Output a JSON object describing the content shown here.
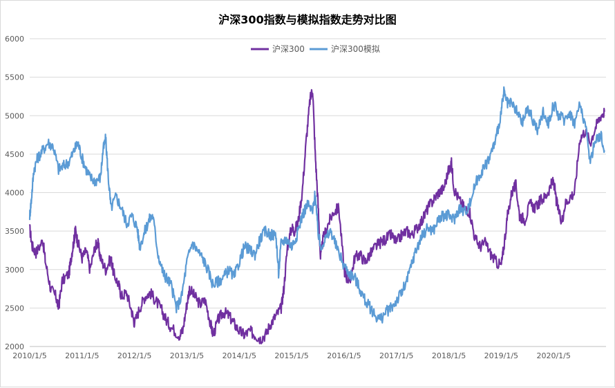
{
  "chart_data": {
    "type": "line",
    "title": "沪深300指数与模拟指数走势对比图",
    "xlabel": "",
    "ylabel": "",
    "ylim": [
      2000,
      6000
    ],
    "yticks": [
      2000,
      2500,
      3000,
      3500,
      4000,
      4500,
      5000,
      5500,
      6000
    ],
    "x_ticks": [
      "2010/1/5",
      "2011/1/5",
      "2012/1/5",
      "2013/1/5",
      "2014/1/5",
      "2015/1/5",
      "2016/1/5",
      "2017/1/5",
      "2018/1/5",
      "2019/1/5",
      "2020/1/5"
    ],
    "x_range": [
      2010.0,
      2021.0
    ],
    "legend_position": "top-center",
    "grid": true,
    "series": [
      {
        "name": "沪深300",
        "color": "#7030a0",
        "points": [
          [
            2010.0,
            3530
          ],
          [
            2010.05,
            3300
          ],
          [
            2010.12,
            3220
          ],
          [
            2010.25,
            3380
          ],
          [
            2010.3,
            3100
          ],
          [
            2010.4,
            2750
          ],
          [
            2010.5,
            2650
          ],
          [
            2010.55,
            2500
          ],
          [
            2010.62,
            2850
          ],
          [
            2010.75,
            2950
          ],
          [
            2010.8,
            3200
          ],
          [
            2010.85,
            3400
          ],
          [
            2010.87,
            3520
          ],
          [
            2010.92,
            3350
          ],
          [
            2011.0,
            3150
          ],
          [
            2011.08,
            3250
          ],
          [
            2011.15,
            3000
          ],
          [
            2011.25,
            3300
          ],
          [
            2011.3,
            3350
          ],
          [
            2011.35,
            3150
          ],
          [
            2011.45,
            3000
          ],
          [
            2011.55,
            3150
          ],
          [
            2011.6,
            2950
          ],
          [
            2011.7,
            2800
          ],
          [
            2011.75,
            2650
          ],
          [
            2011.85,
            2700
          ],
          [
            2011.95,
            2450
          ],
          [
            2012.0,
            2300
          ],
          [
            2012.1,
            2500
          ],
          [
            2012.2,
            2650
          ],
          [
            2012.3,
            2700
          ],
          [
            2012.4,
            2600
          ],
          [
            2012.5,
            2500
          ],
          [
            2012.6,
            2350
          ],
          [
            2012.7,
            2250
          ],
          [
            2012.85,
            2150
          ],
          [
            2012.92,
            2200
          ],
          [
            2013.0,
            2550
          ],
          [
            2013.05,
            2750
          ],
          [
            2013.15,
            2650
          ],
          [
            2013.25,
            2550
          ],
          [
            2013.35,
            2600
          ],
          [
            2013.45,
            2300
          ],
          [
            2013.5,
            2150
          ],
          [
            2013.6,
            2350
          ],
          [
            2013.7,
            2450
          ],
          [
            2013.8,
            2400
          ],
          [
            2013.9,
            2300
          ],
          [
            2014.0,
            2200
          ],
          [
            2014.1,
            2150
          ],
          [
            2014.2,
            2200
          ],
          [
            2014.3,
            2150
          ],
          [
            2014.4,
            2100
          ],
          [
            2014.5,
            2150
          ],
          [
            2014.6,
            2300
          ],
          [
            2014.7,
            2400
          ],
          [
            2014.8,
            2500
          ],
          [
            2014.85,
            2750
          ],
          [
            2014.92,
            3300
          ],
          [
            2015.0,
            3550
          ],
          [
            2015.05,
            3500
          ],
          [
            2015.12,
            3600
          ],
          [
            2015.2,
            4000
          ],
          [
            2015.28,
            4700
          ],
          [
            2015.35,
            5200
          ],
          [
            2015.4,
            5350
          ],
          [
            2015.45,
            4500
          ],
          [
            2015.5,
            3900
          ],
          [
            2015.55,
            3150
          ],
          [
            2015.6,
            3400
          ],
          [
            2015.7,
            3600
          ],
          [
            2015.8,
            3750
          ],
          [
            2015.9,
            3800
          ],
          [
            2016.0,
            3000
          ],
          [
            2016.05,
            2900
          ],
          [
            2016.12,
            2850
          ],
          [
            2016.2,
            3150
          ],
          [
            2016.3,
            3200
          ],
          [
            2016.4,
            3100
          ],
          [
            2016.5,
            3200
          ],
          [
            2016.6,
            3300
          ],
          [
            2016.7,
            3350
          ],
          [
            2016.8,
            3400
          ],
          [
            2016.9,
            3450
          ],
          [
            2017.0,
            3350
          ],
          [
            2017.1,
            3450
          ],
          [
            2017.2,
            3500
          ],
          [
            2017.3,
            3450
          ],
          [
            2017.4,
            3550
          ],
          [
            2017.5,
            3650
          ],
          [
            2017.6,
            3800
          ],
          [
            2017.7,
            3900
          ],
          [
            2017.8,
            4000
          ],
          [
            2017.9,
            4050
          ],
          [
            2018.0,
            4300
          ],
          [
            2018.05,
            4380
          ],
          [
            2018.1,
            4050
          ],
          [
            2018.2,
            3900
          ],
          [
            2018.3,
            3800
          ],
          [
            2018.4,
            3750
          ],
          [
            2018.5,
            3400
          ],
          [
            2018.6,
            3300
          ],
          [
            2018.7,
            3350
          ],
          [
            2018.8,
            3200
          ],
          [
            2018.9,
            3100
          ],
          [
            2019.0,
            3050
          ],
          [
            2019.05,
            3300
          ],
          [
            2019.12,
            3700
          ],
          [
            2019.2,
            4000
          ],
          [
            2019.28,
            4100
          ],
          [
            2019.35,
            3700
          ],
          [
            2019.45,
            3650
          ],
          [
            2019.55,
            3850
          ],
          [
            2019.65,
            3800
          ],
          [
            2019.75,
            3900
          ],
          [
            2019.85,
            3950
          ],
          [
            2019.95,
            4100
          ],
          [
            2020.0,
            4150
          ],
          [
            2020.05,
            3900
          ],
          [
            2020.15,
            3600
          ],
          [
            2020.22,
            3850
          ],
          [
            2020.32,
            3950
          ],
          [
            2020.4,
            4000
          ],
          [
            2020.5,
            4700
          ],
          [
            2020.6,
            4800
          ],
          [
            2020.7,
            4650
          ],
          [
            2020.8,
            4850
          ],
          [
            2020.9,
            5000
          ],
          [
            2020.97,
            5050
          ]
        ]
      },
      {
        "name": "沪深300模拟",
        "color": "#5b9bd5",
        "points": [
          [
            2010.0,
            3700
          ],
          [
            2010.03,
            3900
          ],
          [
            2010.08,
            4300
          ],
          [
            2010.15,
            4450
          ],
          [
            2010.25,
            4550
          ],
          [
            2010.35,
            4650
          ],
          [
            2010.45,
            4600
          ],
          [
            2010.55,
            4300
          ],
          [
            2010.65,
            4350
          ],
          [
            2010.75,
            4400
          ],
          [
            2010.85,
            4550
          ],
          [
            2010.92,
            4650
          ],
          [
            2011.0,
            4450
          ],
          [
            2011.08,
            4300
          ],
          [
            2011.15,
            4200
          ],
          [
            2011.25,
            4150
          ],
          [
            2011.35,
            4200
          ],
          [
            2011.4,
            4550
          ],
          [
            2011.45,
            4700
          ],
          [
            2011.5,
            4200
          ],
          [
            2011.55,
            3800
          ],
          [
            2011.65,
            3950
          ],
          [
            2011.75,
            3800
          ],
          [
            2011.85,
            3600
          ],
          [
            2011.95,
            3700
          ],
          [
            2012.05,
            3550
          ],
          [
            2012.1,
            3300
          ],
          [
            2012.2,
            3500
          ],
          [
            2012.28,
            3650
          ],
          [
            2012.35,
            3700
          ],
          [
            2012.45,
            3200
          ],
          [
            2012.55,
            2950
          ],
          [
            2012.6,
            2900
          ],
          [
            2012.7,
            2800
          ],
          [
            2012.8,
            2500
          ],
          [
            2012.9,
            2650
          ],
          [
            2013.0,
            3100
          ],
          [
            2013.1,
            3350
          ],
          [
            2013.2,
            3250
          ],
          [
            2013.3,
            3150
          ],
          [
            2013.4,
            3000
          ],
          [
            2013.5,
            2800
          ],
          [
            2013.6,
            2850
          ],
          [
            2013.7,
            2900
          ],
          [
            2013.8,
            3000
          ],
          [
            2013.9,
            2900
          ],
          [
            2014.0,
            3100
          ],
          [
            2014.1,
            3300
          ],
          [
            2014.2,
            3250
          ],
          [
            2014.3,
            3200
          ],
          [
            2014.4,
            3400
          ],
          [
            2014.5,
            3500
          ],
          [
            2014.6,
            3450
          ],
          [
            2014.7,
            3450
          ],
          [
            2014.75,
            2950
          ],
          [
            2014.8,
            3350
          ],
          [
            2014.9,
            3400
          ],
          [
            2015.0,
            3300
          ],
          [
            2015.1,
            3450
          ],
          [
            2015.2,
            3700
          ],
          [
            2015.3,
            3850
          ],
          [
            2015.4,
            3750
          ],
          [
            2015.45,
            4000
          ],
          [
            2015.5,
            3500
          ],
          [
            2015.55,
            3300
          ],
          [
            2015.65,
            3400
          ],
          [
            2015.75,
            3500
          ],
          [
            2015.85,
            3300
          ],
          [
            2016.0,
            3050
          ],
          [
            2016.1,
            2950
          ],
          [
            2016.2,
            2900
          ],
          [
            2016.3,
            2750
          ],
          [
            2016.4,
            2600
          ],
          [
            2016.5,
            2500
          ],
          [
            2016.6,
            2400
          ],
          [
            2016.7,
            2350
          ],
          [
            2016.8,
            2450
          ],
          [
            2016.9,
            2500
          ],
          [
            2017.0,
            2600
          ],
          [
            2017.1,
            2700
          ],
          [
            2017.2,
            2850
          ],
          [
            2017.3,
            3100
          ],
          [
            2017.4,
            3300
          ],
          [
            2017.5,
            3450
          ],
          [
            2017.6,
            3550
          ],
          [
            2017.7,
            3500
          ],
          [
            2017.8,
            3650
          ],
          [
            2017.9,
            3700
          ],
          [
            2018.0,
            3700
          ],
          [
            2018.1,
            3650
          ],
          [
            2018.2,
            3800
          ],
          [
            2018.3,
            3750
          ],
          [
            2018.4,
            3850
          ],
          [
            2018.5,
            4100
          ],
          [
            2018.6,
            4250
          ],
          [
            2018.7,
            4350
          ],
          [
            2018.8,
            4500
          ],
          [
            2018.9,
            4700
          ],
          [
            2019.0,
            5050
          ],
          [
            2019.05,
            5300
          ],
          [
            2019.12,
            5150
          ],
          [
            2019.2,
            5150
          ],
          [
            2019.3,
            5050
          ],
          [
            2019.4,
            4900
          ],
          [
            2019.5,
            5100
          ],
          [
            2019.6,
            4950
          ],
          [
            2019.7,
            4800
          ],
          [
            2019.8,
            5050
          ],
          [
            2019.9,
            4900
          ],
          [
            2020.0,
            5150
          ],
          [
            2020.1,
            5000
          ],
          [
            2020.2,
            4950
          ],
          [
            2020.3,
            5050
          ],
          [
            2020.4,
            4900
          ],
          [
            2020.5,
            5150
          ],
          [
            2020.6,
            4900
          ],
          [
            2020.7,
            4400
          ],
          [
            2020.8,
            4700
          ],
          [
            2020.9,
            4750
          ],
          [
            2020.97,
            4550
          ]
        ]
      }
    ]
  }
}
